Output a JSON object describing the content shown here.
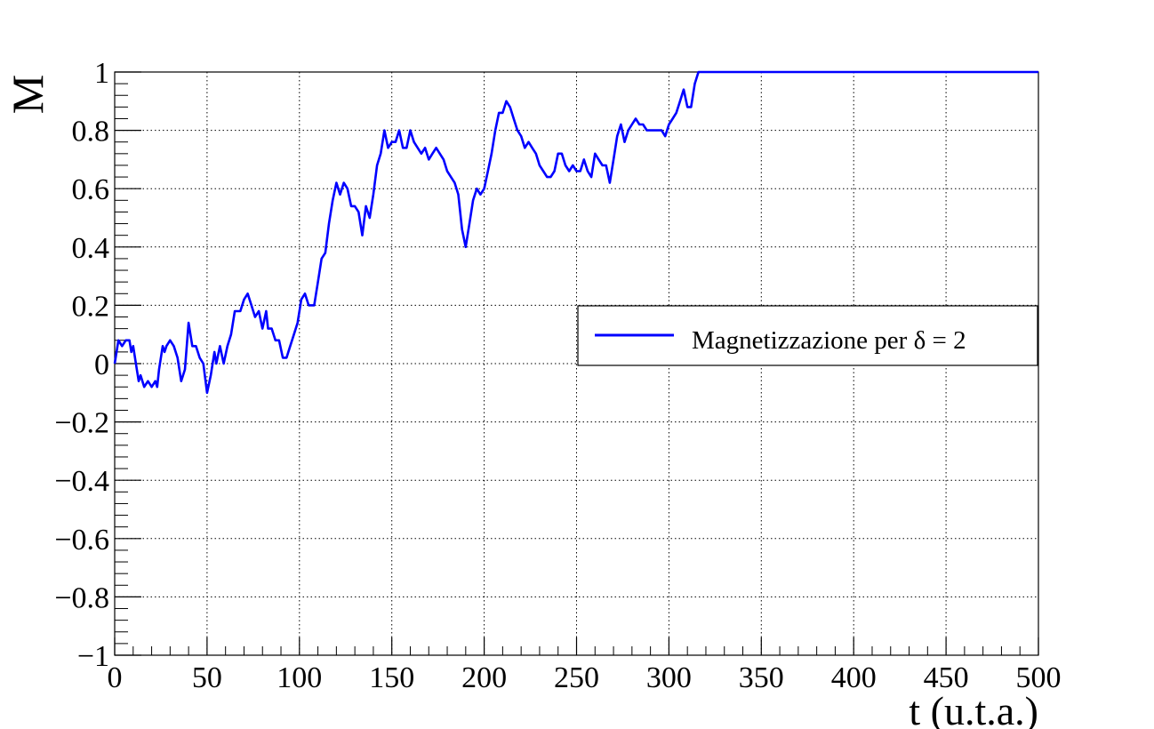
{
  "chart_data": {
    "type": "line",
    "xlabel": "t (u.t.a.)",
    "ylabel": "M",
    "xlim": [
      0,
      500
    ],
    "ylim": [
      -1,
      1
    ],
    "x_ticks": [
      "0",
      "50",
      "100",
      "150",
      "200",
      "250",
      "300",
      "350",
      "400",
      "450",
      "500"
    ],
    "y_ticks": [
      "−1",
      "−0.8",
      "−0.6",
      "−0.4",
      "−0.2",
      "0",
      "0.2",
      "0.4",
      "0.6",
      "0.8",
      "1"
    ],
    "grid": true,
    "legend_position": "right",
    "series": [
      {
        "name": "Magnetizzazione per δ = 2",
        "color": "#0000ff",
        "points": [
          [
            0,
            0
          ],
          [
            2,
            0.08
          ],
          [
            4,
            0.06
          ],
          [
            6,
            0.08
          ],
          [
            8,
            0.08
          ],
          [
            9,
            0.04
          ],
          [
            10,
            0.06
          ],
          [
            12,
            -0.02
          ],
          [
            13,
            -0.06
          ],
          [
            14,
            -0.04
          ],
          [
            16,
            -0.08
          ],
          [
            18,
            -0.06
          ],
          [
            20,
            -0.08
          ],
          [
            22,
            -0.06
          ],
          [
            23,
            -0.08
          ],
          [
            24,
            -0.02
          ],
          [
            26,
            0.06
          ],
          [
            27,
            0.04
          ],
          [
            28,
            0.06
          ],
          [
            30,
            0.08
          ],
          [
            32,
            0.06
          ],
          [
            34,
            0.02
          ],
          [
            36,
            -0.06
          ],
          [
            38,
            -0.02
          ],
          [
            40,
            0.14
          ],
          [
            42,
            0.06
          ],
          [
            44,
            0.06
          ],
          [
            46,
            0.02
          ],
          [
            48,
            0.0
          ],
          [
            50,
            -0.1
          ],
          [
            52,
            -0.04
          ],
          [
            54,
            0.04
          ],
          [
            55,
            0.0
          ],
          [
            57,
            0.06
          ],
          [
            59,
            0.0
          ],
          [
            61,
            0.06
          ],
          [
            63,
            0.1
          ],
          [
            65,
            0.18
          ],
          [
            68,
            0.18
          ],
          [
            70,
            0.22
          ],
          [
            72,
            0.24
          ],
          [
            74,
            0.2
          ],
          [
            76,
            0.16
          ],
          [
            78,
            0.18
          ],
          [
            80,
            0.12
          ],
          [
            82,
            0.18
          ],
          [
            83,
            0.12
          ],
          [
            85,
            0.12
          ],
          [
            87,
            0.08
          ],
          [
            89,
            0.08
          ],
          [
            91,
            0.02
          ],
          [
            93,
            0.02
          ],
          [
            95,
            0.06
          ],
          [
            97,
            0.1
          ],
          [
            99,
            0.14
          ],
          [
            101,
            0.22
          ],
          [
            103,
            0.24
          ],
          [
            105,
            0.2
          ],
          [
            108,
            0.2
          ],
          [
            110,
            0.28
          ],
          [
            112,
            0.36
          ],
          [
            114,
            0.38
          ],
          [
            116,
            0.48
          ],
          [
            118,
            0.56
          ],
          [
            120,
            0.62
          ],
          [
            122,
            0.58
          ],
          [
            124,
            0.62
          ],
          [
            126,
            0.6
          ],
          [
            128,
            0.54
          ],
          [
            130,
            0.54
          ],
          [
            132,
            0.52
          ],
          [
            134,
            0.44
          ],
          [
            136,
            0.54
          ],
          [
            138,
            0.5
          ],
          [
            140,
            0.58
          ],
          [
            142,
            0.68
          ],
          [
            144,
            0.72
          ],
          [
            146,
            0.8
          ],
          [
            148,
            0.74
          ],
          [
            150,
            0.76
          ],
          [
            152,
            0.76
          ],
          [
            154,
            0.8
          ],
          [
            156,
            0.74
          ],
          [
            158,
            0.74
          ],
          [
            160,
            0.8
          ],
          [
            162,
            0.76
          ],
          [
            164,
            0.74
          ],
          [
            166,
            0.72
          ],
          [
            168,
            0.74
          ],
          [
            170,
            0.7
          ],
          [
            172,
            0.72
          ],
          [
            174,
            0.74
          ],
          [
            176,
            0.72
          ],
          [
            178,
            0.7
          ],
          [
            180,
            0.66
          ],
          [
            182,
            0.64
          ],
          [
            184,
            0.62
          ],
          [
            186,
            0.58
          ],
          [
            188,
            0.46
          ],
          [
            190,
            0.4
          ],
          [
            192,
            0.48
          ],
          [
            194,
            0.56
          ],
          [
            196,
            0.6
          ],
          [
            198,
            0.58
          ],
          [
            200,
            0.6
          ],
          [
            202,
            0.66
          ],
          [
            204,
            0.72
          ],
          [
            206,
            0.8
          ],
          [
            208,
            0.86
          ],
          [
            210,
            0.86
          ],
          [
            212,
            0.9
          ],
          [
            214,
            0.88
          ],
          [
            216,
            0.84
          ],
          [
            218,
            0.8
          ],
          [
            220,
            0.78
          ],
          [
            222,
            0.74
          ],
          [
            224,
            0.76
          ],
          [
            226,
            0.74
          ],
          [
            228,
            0.72
          ],
          [
            230,
            0.68
          ],
          [
            232,
            0.66
          ],
          [
            234,
            0.64
          ],
          [
            236,
            0.64
          ],
          [
            238,
            0.66
          ],
          [
            240,
            0.72
          ],
          [
            242,
            0.72
          ],
          [
            244,
            0.68
          ],
          [
            246,
            0.66
          ],
          [
            248,
            0.68
          ],
          [
            250,
            0.66
          ],
          [
            252,
            0.66
          ],
          [
            254,
            0.7
          ],
          [
            256,
            0.66
          ],
          [
            258,
            0.64
          ],
          [
            260,
            0.72
          ],
          [
            262,
            0.7
          ],
          [
            264,
            0.68
          ],
          [
            266,
            0.68
          ],
          [
            268,
            0.62
          ],
          [
            270,
            0.7
          ],
          [
            272,
            0.78
          ],
          [
            274,
            0.82
          ],
          [
            276,
            0.76
          ],
          [
            278,
            0.8
          ],
          [
            280,
            0.82
          ],
          [
            282,
            0.84
          ],
          [
            284,
            0.82
          ],
          [
            286,
            0.82
          ],
          [
            288,
            0.8
          ],
          [
            292,
            0.8
          ],
          [
            296,
            0.8
          ],
          [
            298,
            0.78
          ],
          [
            300,
            0.82
          ],
          [
            302,
            0.84
          ],
          [
            304,
            0.86
          ],
          [
            306,
            0.9
          ],
          [
            308,
            0.94
          ],
          [
            310,
            0.88
          ],
          [
            312,
            0.88
          ],
          [
            314,
            0.96
          ],
          [
            316,
            1.0
          ],
          [
            320,
            1.0
          ],
          [
            500,
            1.0
          ]
        ]
      }
    ]
  }
}
